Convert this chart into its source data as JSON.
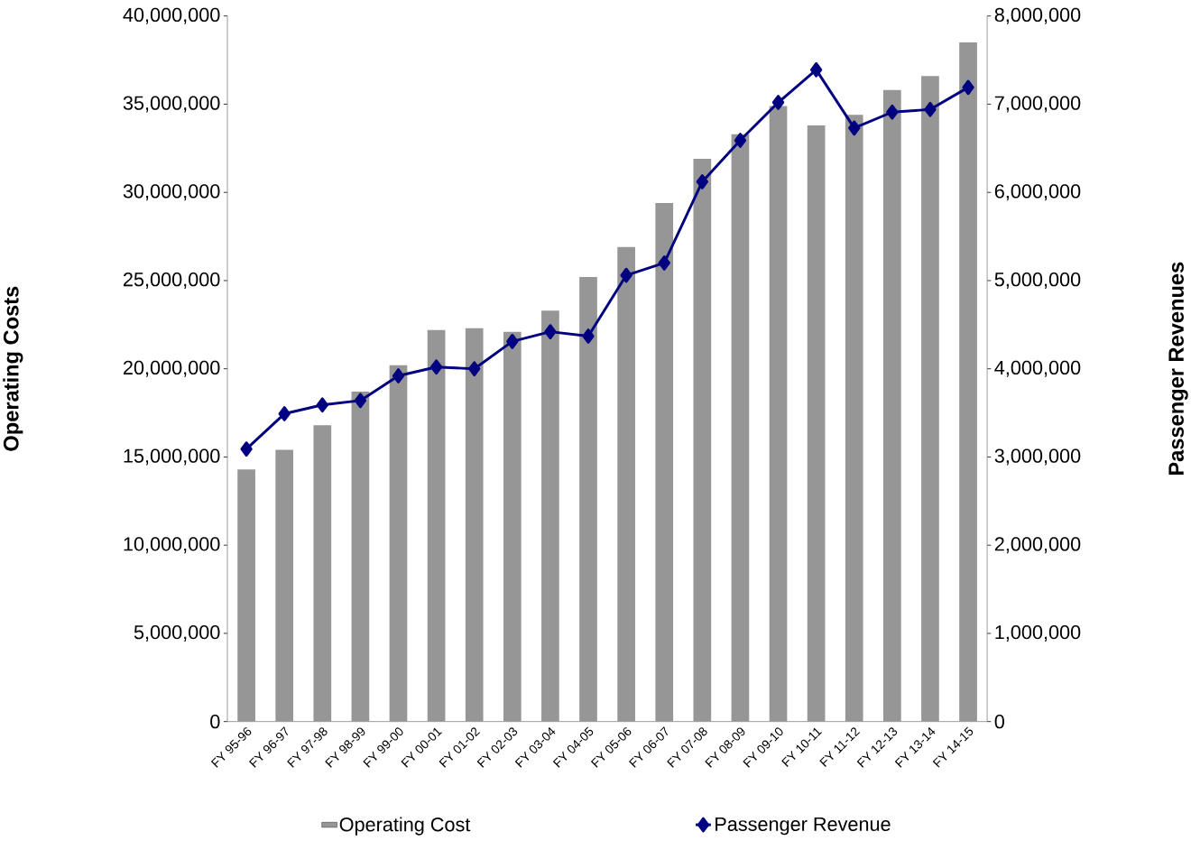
{
  "chart_data": {
    "type": "bar",
    "ylabel": "Operating Costs",
    "y2label": "Passenger Revenues",
    "categories": [
      "FY 95-96",
      "FY 96-97",
      "FY 97-98",
      "FY 98-99",
      "FY 99-00",
      "FY 00-01",
      "FY 01-02",
      "FY 02-03",
      "FY 03-04",
      "FY 04-05",
      "FY 05-06",
      "FY 06-07",
      "FY 07-08",
      "FY 08-09",
      "FY 09-10",
      "FY 10-11",
      "FY 11-12",
      "FY 12-13",
      "FY 13-14",
      "FY 14-15"
    ],
    "series": [
      {
        "name": "Operating Cost",
        "color": "#969696",
        "values": [
          14300000,
          15400000,
          16800000,
          18700000,
          20200000,
          22200000,
          22300000,
          22100000,
          23300000,
          25200000,
          26900000,
          29400000,
          31900000,
          33300000,
          34900000,
          33800000,
          34400000,
          35800000,
          36600000,
          38500000
        ]
      },
      {
        "name": "Passenger Revenue",
        "type": "line",
        "axis": "y2",
        "color": "#000080",
        "marker": "diamond",
        "values": [
          3090000,
          3490000,
          3590000,
          3640000,
          3920000,
          4020000,
          4000000,
          4310000,
          4420000,
          4370000,
          5060000,
          5200000,
          6120000,
          6590000,
          7020000,
          7390000,
          6730000,
          6910000,
          6940000,
          7190000
        ]
      }
    ],
    "ylim": [
      0,
      40000000
    ],
    "yticks": [
      {
        "value": 0,
        "label": "0"
      },
      {
        "value": 5000000,
        "label": "5,000,000"
      },
      {
        "value": 10000000,
        "label": "10,000,000"
      },
      {
        "value": 15000000,
        "label": "15,000,000"
      },
      {
        "value": 20000000,
        "label": "20,000,000"
      },
      {
        "value": 25000000,
        "label": "25,000,000"
      },
      {
        "value": 30000000,
        "label": "30,000,000"
      },
      {
        "value": 35000000,
        "label": "35,000,000"
      },
      {
        "value": 40000000,
        "label": "40,000,000"
      }
    ],
    "y2lim": [
      0,
      8000000
    ],
    "y2ticks": [
      {
        "value": 0,
        "label": "0"
      },
      {
        "value": 1000000,
        "label": "1,000,000"
      },
      {
        "value": 2000000,
        "label": "2,000,000"
      },
      {
        "value": 3000000,
        "label": "3,000,000"
      },
      {
        "value": 4000000,
        "label": "4,000,000"
      },
      {
        "value": 5000000,
        "label": "5,000,000"
      },
      {
        "value": 6000000,
        "label": "6,000,000"
      },
      {
        "value": 7000000,
        "label": "7,000,000"
      },
      {
        "value": 8000000,
        "label": "8,000,000"
      }
    ],
    "legend": "bottom"
  }
}
